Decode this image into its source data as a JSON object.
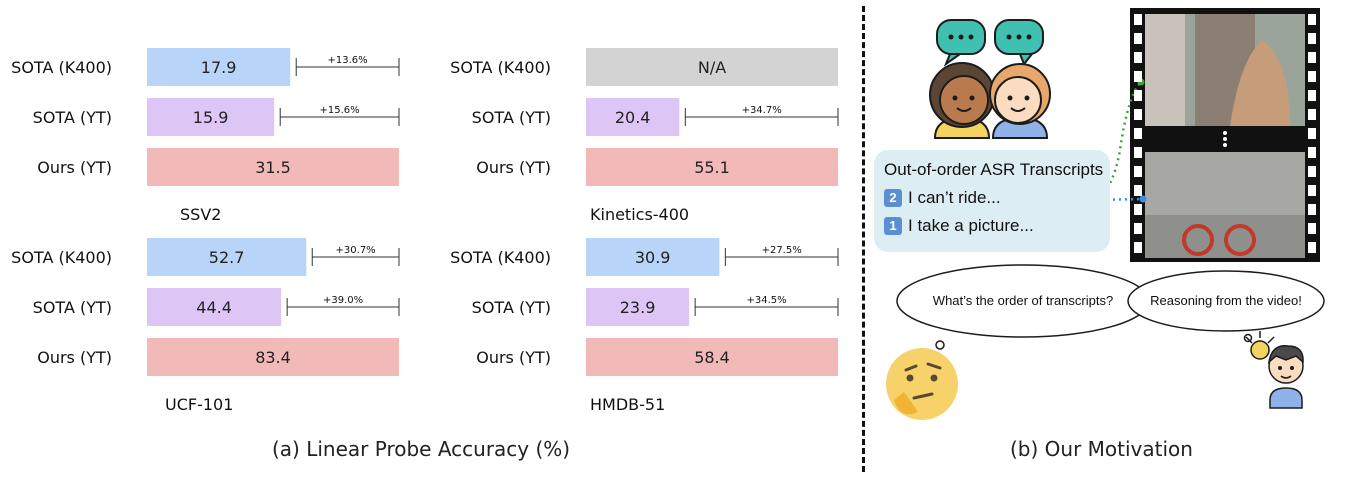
{
  "chart_data": [
    {
      "type": "bar",
      "orientation": "horizontal",
      "title": "SSV2",
      "categories": [
        "SOTA (K400)",
        "SOTA (YT)",
        "Ours (YT)"
      ],
      "values": [
        17.9,
        15.9,
        31.5
      ],
      "value_labels": [
        "17.9",
        "15.9",
        "31.5"
      ],
      "gains": [
        "+13.6%",
        "+15.6%",
        ""
      ],
      "colors": [
        "#b8d4f8",
        "#ddc6f5",
        "#f2b9b9"
      ],
      "xlim": [
        0,
        31.5
      ]
    },
    {
      "type": "bar",
      "orientation": "horizontal",
      "title": "Kinetics-400",
      "categories": [
        "SOTA (K400)",
        "SOTA (YT)",
        "Ours (YT)"
      ],
      "values": [
        55.1,
        20.4,
        55.1
      ],
      "value_labels": [
        "N/A",
        "20.4",
        "55.1"
      ],
      "gains": [
        "",
        "+34.7%",
        ""
      ],
      "colors": [
        "#d3d3d3",
        "#ddc6f5",
        "#f2b9b9"
      ],
      "xlim": [
        0,
        55.1
      ]
    },
    {
      "type": "bar",
      "orientation": "horizontal",
      "title": "UCF-101",
      "categories": [
        "SOTA (K400)",
        "SOTA (YT)",
        "Ours (YT)"
      ],
      "values": [
        52.7,
        44.4,
        83.4
      ],
      "value_labels": [
        "52.7",
        "44.4",
        "83.4"
      ],
      "gains": [
        "+30.7%",
        "+39.0%",
        ""
      ],
      "colors": [
        "#b8d4f8",
        "#ddc6f5",
        "#f2b9b9"
      ],
      "xlim": [
        0,
        83.4
      ]
    },
    {
      "type": "bar",
      "orientation": "horizontal",
      "title": "HMDB-51",
      "categories": [
        "SOTA (K400)",
        "SOTA (YT)",
        "Ours (YT)"
      ],
      "values": [
        30.9,
        23.9,
        58.4
      ],
      "value_labels": [
        "30.9",
        "23.9",
        "58.4"
      ],
      "gains": [
        "+27.5%",
        "+34.5%",
        ""
      ],
      "colors": [
        "#b8d4f8",
        "#ddc6f5",
        "#f2b9b9"
      ],
      "xlim": [
        0,
        58.4
      ]
    }
  ],
  "captions": {
    "left": "(a) Linear Probe Accuracy (%)",
    "right": "(b) Our Motivation"
  },
  "motivation": {
    "asr_title": "Out-of-order ASR Transcripts",
    "line1_num": "2",
    "line1": "I can’t ride...",
    "line2_num": "1",
    "line2": "I take a picture...",
    "question": "What’s the order of  transcripts?",
    "answer": "Reasoning from the video!",
    "colors": {
      "blue_link": "#3b8fe6",
      "green_link": "#3fa33a"
    }
  }
}
